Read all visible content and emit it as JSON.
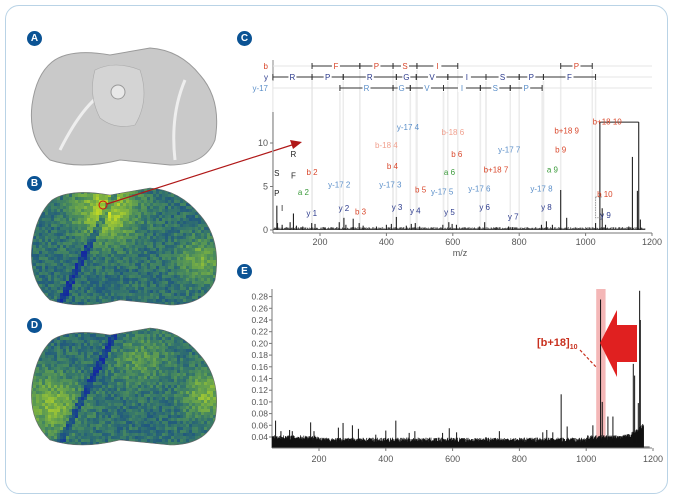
{
  "panels": {
    "a": "A",
    "b": "B",
    "c": "C",
    "d": "D",
    "e": "E"
  },
  "colors": {
    "panel_badge": "#0b5394",
    "b_ion": "#d9472b",
    "b18_ion": "#f0a08e",
    "y_ion": "#2b3a8c",
    "y17_ion": "#5b8fc9",
    "a_ion": "#3a9a3a",
    "immonium": "#222222",
    "highlight": "#e03030",
    "heatmap_low": "#1a2a9a",
    "heatmap_high": "#c8e020"
  },
  "chart_data": [
    {
      "id": "C",
      "type": "line",
      "title": "",
      "xlabel": "m/z",
      "ylabel": "",
      "xlim": [
        58,
        1200
      ],
      "ylim": [
        0,
        13
      ],
      "xticks": [
        "200",
        "400",
        "600",
        "800",
        "1000",
        "1200"
      ],
      "yticks": [
        "0",
        "5",
        "10"
      ],
      "grid": false,
      "sequence_rows": [
        {
          "label": "b",
          "segments": [
            [
              "F",
              176,
              320
            ],
            [
              "P",
              320,
              420
            ],
            [
              "S",
              420,
              492
            ],
            [
              "I",
              492,
              615
            ],
            [
              "P",
              925,
              1020
            ]
          ]
        },
        {
          "label": "y",
          "segments": [
            [
              "R",
              58,
              176
            ],
            [
              "P",
              176,
              270
            ],
            [
              "R",
              270,
              430
            ],
            [
              "G",
              430,
              490
            ],
            [
              "V",
              490,
              585
            ],
            [
              "I",
              585,
              700
            ],
            [
              "S",
              700,
              800
            ],
            [
              "P",
              800,
              873
            ],
            [
              "F",
              873,
              1030
            ]
          ]
        },
        {
          "label": "y-17",
          "segments": [
            [
              "R",
              260,
              420
            ],
            [
              "G",
              420,
              472
            ],
            [
              "V",
              472,
              572
            ],
            [
              "I",
              572,
              683
            ],
            [
              "S",
              683,
              773
            ],
            [
              "P",
              773,
              869
            ]
          ]
        }
      ],
      "peaks": [
        [
          70,
          2.8
        ],
        [
          72,
          0.8
        ],
        [
          86,
          0.6
        ],
        [
          110,
          0.9
        ],
        [
          120,
          1.9
        ],
        [
          129,
          0.5
        ],
        [
          148,
          0.4
        ],
        [
          175,
          0.8
        ],
        [
          185,
          0.7
        ],
        [
          215,
          0.3
        ],
        [
          258,
          0.9
        ],
        [
          272,
          1.4
        ],
        [
          278,
          0.6
        ],
        [
          300,
          1.3
        ],
        [
          318,
          0.8
        ],
        [
          330,
          0.5
        ],
        [
          370,
          0.4
        ],
        [
          400,
          0.6
        ],
        [
          415,
          0.7
        ],
        [
          430,
          1.5
        ],
        [
          460,
          0.5
        ],
        [
          475,
          0.7
        ],
        [
          487,
          0.8
        ],
        [
          500,
          0.4
        ],
        [
          570,
          0.6
        ],
        [
          588,
          0.9
        ],
        [
          598,
          0.7
        ],
        [
          611,
          0.6
        ],
        [
          680,
          0.4
        ],
        [
          696,
          0.9
        ],
        [
          730,
          0.3
        ],
        [
          768,
          0.4
        ],
        [
          780,
          0.3
        ],
        [
          867,
          0.6
        ],
        [
          882,
          1.0
        ],
        [
          900,
          0.6
        ],
        [
          925,
          4.6
        ],
        [
          943,
          1.4
        ],
        [
          1030,
          0.8
        ],
        [
          1043,
          12.4
        ],
        [
          1050,
          2.5
        ],
        [
          1060,
          0.6
        ],
        [
          1130,
          0.4
        ],
        [
          1141,
          8.4
        ],
        [
          1156,
          4.5
        ],
        [
          1160,
          12.4
        ],
        [
          1165,
          1.2
        ]
      ],
      "annotations": [
        {
          "text": "S",
          "mz": 70,
          "y": 6.2,
          "kind": "immonium"
        },
        {
          "text": "P",
          "mz": 70,
          "y": 3.9,
          "kind": "immonium"
        },
        {
          "text": "I",
          "mz": 86,
          "y": 2.2,
          "kind": "immonium"
        },
        {
          "text": "R",
          "mz": 120,
          "y": 8.4,
          "kind": "immonium"
        },
        {
          "text": "F",
          "mz": 120,
          "y": 5.9,
          "kind": "immonium"
        },
        {
          "text": "b 2",
          "mz": 176,
          "y": 6.3,
          "kind": "b"
        },
        {
          "text": "a 2",
          "mz": 150,
          "y": 4.0,
          "kind": "a"
        },
        {
          "text": "y 1",
          "mz": 175,
          "y": 1.6,
          "kind": "y"
        },
        {
          "text": "y-17 2",
          "mz": 258,
          "y": 4.9,
          "kind": "y17"
        },
        {
          "text": "y 2",
          "mz": 272,
          "y": 2.2,
          "kind": "y"
        },
        {
          "text": "b 3",
          "mz": 322,
          "y": 1.8,
          "kind": "b"
        },
        {
          "text": "b-18 4",
          "mz": 400,
          "y": 9.4,
          "kind": "b18"
        },
        {
          "text": "b 4",
          "mz": 418,
          "y": 7.0,
          "kind": "b"
        },
        {
          "text": "y-17 3",
          "mz": 412,
          "y": 4.9,
          "kind": "y17"
        },
        {
          "text": "y 3",
          "mz": 432,
          "y": 2.3,
          "kind": "y"
        },
        {
          "text": "y-17 4",
          "mz": 465,
          "y": 11.5,
          "kind": "y17"
        },
        {
          "text": "b 5",
          "mz": 503,
          "y": 4.3,
          "kind": "b"
        },
        {
          "text": "y 4",
          "mz": 487,
          "y": 1.9,
          "kind": "y"
        },
        {
          "text": "y-17 5",
          "mz": 568,
          "y": 4.1,
          "kind": "y17"
        },
        {
          "text": "y 5",
          "mz": 590,
          "y": 1.7,
          "kind": "y"
        },
        {
          "text": "b-18 6",
          "mz": 600,
          "y": 10.9,
          "kind": "b18"
        },
        {
          "text": "b 6",
          "mz": 612,
          "y": 8.4,
          "kind": "b"
        },
        {
          "text": "a 6",
          "mz": 590,
          "y": 6.3,
          "kind": "a"
        },
        {
          "text": "y-17 6",
          "mz": 680,
          "y": 4.4,
          "kind": "y17"
        },
        {
          "text": "y 6",
          "mz": 696,
          "y": 2.3,
          "kind": "y"
        },
        {
          "text": "b+18 7",
          "mz": 730,
          "y": 6.6,
          "kind": "b"
        },
        {
          "text": "y-17 7",
          "mz": 770,
          "y": 8.9,
          "kind": "y17"
        },
        {
          "text": "y 7",
          "mz": 782,
          "y": 1.2,
          "kind": "y"
        },
        {
          "text": "y-17 8",
          "mz": 867,
          "y": 4.4,
          "kind": "y17"
        },
        {
          "text": "y 8",
          "mz": 882,
          "y": 2.3,
          "kind": "y"
        },
        {
          "text": "a 9",
          "mz": 900,
          "y": 6.6,
          "kind": "a"
        },
        {
          "text": "b 9",
          "mz": 925,
          "y": 8.9,
          "kind": "b"
        },
        {
          "text": "b+18 9",
          "mz": 943,
          "y": 11.1,
          "kind": "b"
        },
        {
          "text": "b 10",
          "mz": 1058,
          "y": 3.8,
          "kind": "b"
        },
        {
          "text": "y 9",
          "mz": 1060,
          "y": 1.4,
          "kind": "y"
        },
        {
          "text": "b+18 10",
          "mz": 1065,
          "y": 12.1,
          "kind": "b"
        }
      ]
    },
    {
      "id": "E",
      "type": "line",
      "title": "",
      "xlabel": "",
      "ylabel": "",
      "xlim": [
        58,
        1210
      ],
      "ylim": [
        0.02,
        0.295
      ],
      "xticks": [
        "200",
        "400",
        "600",
        "800",
        "1000",
        "1200"
      ],
      "yticks": [
        "0.04",
        "0.06",
        "0.08",
        "0.10",
        "0.12",
        "0.14",
        "0.16",
        "0.18",
        "0.20",
        "0.22",
        "0.24",
        "0.26",
        "0.28"
      ],
      "grid": false,
      "baseline": 0.035,
      "peaks": [
        [
          70,
          0.068
        ],
        [
          86,
          0.05
        ],
        [
          112,
          0.052
        ],
        [
          120,
          0.05
        ],
        [
          175,
          0.065
        ],
        [
          185,
          0.05
        ],
        [
          258,
          0.056
        ],
        [
          272,
          0.064
        ],
        [
          300,
          0.06
        ],
        [
          318,
          0.054
        ],
        [
          370,
          0.044
        ],
        [
          400,
          0.051
        ],
        [
          430,
          0.068
        ],
        [
          470,
          0.047
        ],
        [
          487,
          0.05
        ],
        [
          570,
          0.047
        ],
        [
          590,
          0.055
        ],
        [
          612,
          0.048
        ],
        [
          700,
          0.04
        ],
        [
          740,
          0.05
        ],
        [
          870,
          0.048
        ],
        [
          882,
          0.052
        ],
        [
          900,
          0.048
        ],
        [
          925,
          0.113
        ],
        [
          943,
          0.058
        ],
        [
          1020,
          0.06
        ],
        [
          1043,
          0.275
        ],
        [
          1048,
          0.1
        ],
        [
          1065,
          0.075
        ],
        [
          1080,
          0.075
        ],
        [
          1141,
          0.165
        ],
        [
          1145,
          0.145
        ],
        [
          1156,
          0.098
        ],
        [
          1160,
          0.29
        ],
        [
          1162,
          0.24
        ]
      ],
      "highlight_mz": [
        1030,
        1058
      ],
      "annotation": {
        "text": "[b+18]",
        "subscript": "10",
        "mz": 1043
      }
    }
  ]
}
